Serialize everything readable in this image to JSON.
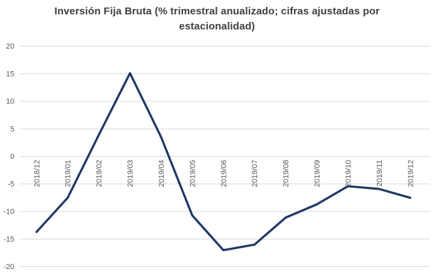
{
  "chart_data": {
    "type": "line",
    "title": "Inversión Fija Bruta (% trimestral anualizado; cifras ajustadas por estacionalidad)",
    "title_lines": [
      "Inversión Fija Bruta (% trimestral anualizado; cifras ajustadas por",
      "estacionalidad)"
    ],
    "categories": [
      "2018/12",
      "2019/01",
      "2019/02",
      "2019/03",
      "2019/04",
      "2019/05",
      "2019/06",
      "2019/07",
      "2019/08",
      "2019/09",
      "2019/10",
      "2019/11",
      "2019/12"
    ],
    "series": [
      {
        "name": "Inversión Fija Bruta",
        "values": [
          -13.7,
          -7.5,
          3.9,
          15.1,
          3.5,
          -10.7,
          -17.0,
          -16.0,
          -11.1,
          -8.7,
          -5.4,
          -5.9,
          -7.5
        ]
      }
    ],
    "y_ticks": [
      20,
      15,
      10,
      5,
      0,
      -5,
      -10,
      -15,
      -20
    ],
    "ylim": [
      -20,
      20
    ],
    "xlabel": "",
    "ylabel": "",
    "grid": "horizontal",
    "legend": "none",
    "colors": {
      "line": "#1f3864",
      "grid": "#d9d9d9",
      "tick_label": "#595959",
      "title": "#3f3f3f",
      "background": "#ffffff"
    }
  }
}
